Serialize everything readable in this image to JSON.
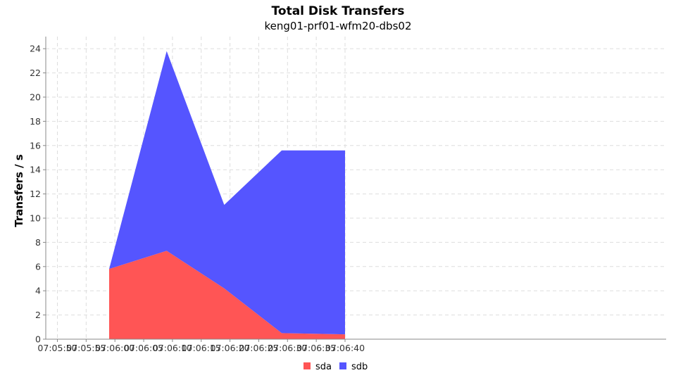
{
  "chart_data": {
    "type": "area",
    "stacked": true,
    "title": "Total Disk Transfers",
    "subtitle": "keng01-prf01-wfm20-dbs02",
    "xlabel": "",
    "ylabel": "Transfers / s",
    "x_ticks": [
      "07:05:50",
      "07:05:55",
      "07:06:00",
      "07:06:05",
      "07:06:10",
      "07:06:15",
      "07:06:20",
      "07:06:25",
      "07:06:30",
      "07:06:35",
      "07:06:40"
    ],
    "x": [
      "07:05:59",
      "07:06:09",
      "07:06:19",
      "07:06:29",
      "07:06:40"
    ],
    "ylim": [
      0,
      25
    ],
    "y_ticks": [
      0,
      2,
      4,
      6,
      8,
      10,
      12,
      14,
      16,
      18,
      20,
      22,
      24
    ],
    "grid": true,
    "legend_position": "bottom",
    "series": [
      {
        "name": "sda",
        "color": "#ff5555",
        "values": [
          5.8,
          7.3,
          4.2,
          0.5,
          0.4
        ]
      },
      {
        "name": "sdb",
        "color": "#5555ff",
        "values": [
          0.0,
          16.5,
          6.9,
          15.1,
          15.2
        ]
      }
    ]
  }
}
